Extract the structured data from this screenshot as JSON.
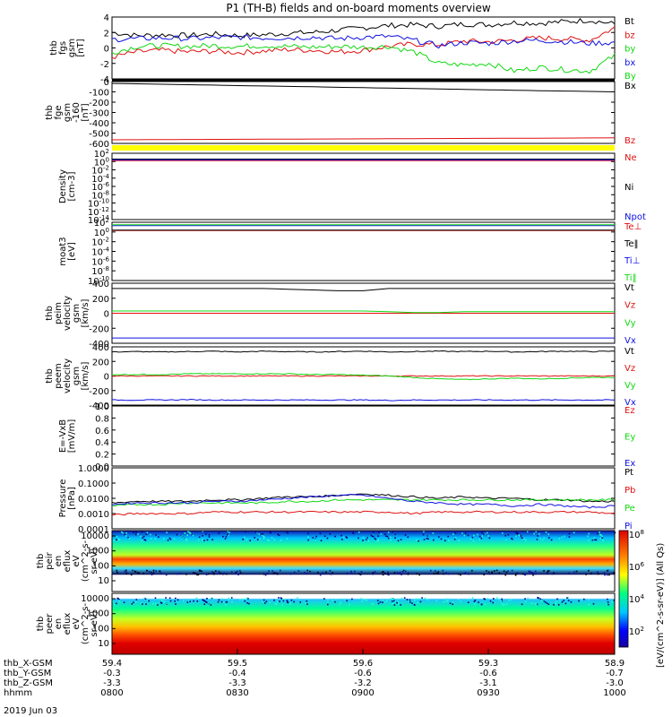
{
  "title": "P1 (TH-B) fields and on-board moments overview",
  "colors": {
    "black": "#000000",
    "red": "#e01010",
    "green": "#10d810",
    "blue": "#1010e0",
    "yellow": "#ffff00"
  },
  "chart_data": [
    {
      "type": "line",
      "id": "fgs",
      "ylabel_lines": [
        "thb",
        "fgs",
        "gsm",
        "[nT]"
      ],
      "ylim": [
        -4,
        4
      ],
      "ticks": [
        "4",
        "2",
        "0",
        "-2",
        "-4"
      ],
      "series": [
        {
          "name": "Bt",
          "color": "black",
          "values": [
            2.0,
            1.6,
            1.7,
            1.6,
            1.8,
            1.6,
            1.7,
            1.9,
            2.0,
            2.3,
            2.6,
            2.9,
            3.0,
            2.8,
            3.1,
            3.0,
            3.3,
            3.2,
            3.4,
            3.6,
            3.1
          ]
        },
        {
          "name": "bz",
          "color": "red",
          "values": [
            -1.2,
            -0.5,
            -0.3,
            -0.5,
            -0.4,
            -0.6,
            -0.4,
            -0.2,
            -0.3,
            -0.5,
            -0.3,
            0.2,
            0.5,
            0.4,
            0.9,
            0.8,
            1.0,
            1.3,
            1.2,
            1.0,
            2.6
          ]
        },
        {
          "name": "by",
          "color": "green",
          "values": [
            -0.6,
            0.2,
            0.3,
            0.2,
            0.3,
            0.2,
            0.3,
            0.2,
            0.1,
            0.2,
            0.1,
            0.2,
            -0.5,
            -2.0,
            -2.2,
            -2.0,
            -3.0,
            -2.5,
            -2.8,
            -3.0,
            -1.0
          ]
        },
        {
          "name": "bx",
          "color": "blue",
          "values": [
            1.1,
            1.2,
            1.3,
            1.2,
            1.3,
            1.4,
            1.3,
            1.3,
            1.4,
            1.2,
            1.4,
            1.5,
            1.0,
            0.3,
            0.7,
            0.6,
            0.9,
            1.0,
            0.8,
            0.6,
            0.7
          ]
        }
      ],
      "extra_legend": [
        {
          "name": "By",
          "color": "green"
        }
      ]
    },
    {
      "type": "line",
      "id": "fge",
      "ylabel_lines": [
        "thb",
        "fge",
        "gsm",
        "-160",
        "[nT]"
      ],
      "ylim": [
        -650,
        0
      ],
      "ticks": [
        "0",
        "-100",
        "-200",
        "-300",
        "-400",
        "-500",
        "-600"
      ],
      "series": [
        {
          "name": "Bx",
          "color": "black",
          "values": [
            -20,
            -24,
            -28,
            -33,
            -37,
            -42,
            -46,
            -51,
            -55,
            -60,
            -64,
            -69,
            -73,
            -78,
            -82,
            -87,
            -91,
            -96,
            -100,
            -104,
            -108
          ]
        },
        {
          "name": "Bz",
          "color": "red",
          "values": [
            -612,
            -611,
            -610,
            -609,
            -608,
            -607,
            -606,
            -605,
            -604,
            -603,
            -602,
            -601,
            -600,
            -599,
            -598,
            -597,
            -596,
            -595,
            -594,
            -593,
            -592
          ]
        }
      ]
    },
    {
      "type": "log",
      "id": "density",
      "ylabel_lines": [
        "Density",
        "[cm-3]"
      ],
      "ylim_exp": [
        -14,
        2
      ],
      "ticks": [
        {
          "b": "10",
          "e": "2"
        },
        {
          "b": "10",
          "e": "0"
        },
        {
          "b": "10",
          "e": "-2"
        },
        {
          "b": "10",
          "e": "-4"
        },
        {
          "b": "10",
          "e": "-6"
        },
        {
          "b": "10",
          "e": "-8"
        },
        {
          "b": "10",
          "e": "-10"
        },
        {
          "b": "10",
          "e": "-12"
        },
        {
          "b": "10",
          "e": "-14"
        }
      ],
      "series": [
        {
          "name": "Ne",
          "color": "red",
          "values": [
            0.2,
            0.2,
            0.2,
            0.2,
            0.2,
            0.2,
            0.2,
            0.2,
            0.2,
            0.2,
            0.2,
            0.2,
            0.2,
            0.2,
            0.2,
            0.2,
            0.2,
            0.2,
            0.2,
            0.2,
            0.2
          ]
        },
        {
          "name": "Ni",
          "color": "black",
          "values": [
            0.6,
            0.6,
            0.6,
            0.6,
            0.6,
            0.6,
            0.6,
            0.6,
            0.6,
            0.6,
            0.6,
            0.6,
            0.6,
            0.6,
            0.6,
            0.6,
            0.6,
            0.6,
            0.6,
            0.6,
            0.6
          ]
        },
        {
          "name": "Npot",
          "color": "blue",
          "values": [
            0.4,
            0.4,
            0.4,
            0.4,
            0.4,
            0.4,
            0.4,
            0.4,
            0.4,
            0.4,
            0.4,
            0.4,
            0.4,
            0.4,
            0.4,
            0.4,
            0.4,
            0.4,
            0.4,
            0.4,
            0.4
          ]
        }
      ]
    },
    {
      "type": "log",
      "id": "moat3",
      "ylabel_lines": [
        "moat3",
        "[eV]"
      ],
      "ylim_exp": [
        -10,
        2
      ],
      "ticks": [
        {
          "b": "10",
          "e": "2"
        },
        {
          "b": "10",
          "e": "0"
        },
        {
          "b": "10",
          "e": "-2"
        },
        {
          "b": "10",
          "e": "-4"
        },
        {
          "b": "10",
          "e": "-6"
        },
        {
          "b": "10",
          "e": "-8"
        },
        {
          "b": "10",
          "e": "-10"
        }
      ],
      "series": [
        {
          "name": "Te⊥",
          "color": "red",
          "values": [
            0.3,
            0.3,
            0.3,
            0.3,
            0.3,
            0.3,
            0.3,
            0.3,
            0.3,
            0.3,
            0.3,
            0.3,
            0.3,
            0.3,
            0.3,
            0.3,
            0.3,
            0.3,
            0.3,
            0.3,
            0.3
          ]
        },
        {
          "name": "Te‖",
          "color": "black",
          "values": [
            0.4,
            0.4,
            0.4,
            0.4,
            0.4,
            0.4,
            0.4,
            0.4,
            0.4,
            0.4,
            0.4,
            0.4,
            0.4,
            0.4,
            0.4,
            0.4,
            0.4,
            0.4,
            0.4,
            0.4,
            0.4
          ]
        },
        {
          "name": "Ti⊥",
          "color": "blue",
          "values": [
            1.3,
            1.3,
            1.3,
            1.3,
            1.3,
            1.3,
            1.3,
            1.3,
            1.3,
            1.3,
            1.3,
            1.3,
            1.3,
            1.3,
            1.3,
            1.3,
            1.3,
            1.3,
            1.3,
            1.3,
            1.3
          ]
        },
        {
          "name": "Ti‖",
          "color": "green",
          "values": [
            1.5,
            1.5,
            1.5,
            1.5,
            1.5,
            1.5,
            1.5,
            1.5,
            1.5,
            1.5,
            1.5,
            1.5,
            1.5,
            1.5,
            1.5,
            1.5,
            1.5,
            1.5,
            1.5,
            1.5,
            1.5
          ]
        }
      ]
    },
    {
      "type": "line",
      "id": "peim",
      "ylabel_lines": [
        "thb",
        "peim",
        "velocity",
        "gsm",
        "[km/s]"
      ],
      "ylim": [
        -400,
        400
      ],
      "ticks": [
        "400",
        "200",
        "0",
        "-200",
        "-400"
      ],
      "series": [
        {
          "name": "Vt",
          "color": "black",
          "values": [
            330,
            330,
            330,
            330,
            330,
            330,
            330,
            320,
            310,
            300,
            300,
            330,
            330,
            330,
            330,
            330,
            330,
            330,
            330,
            330,
            330
          ]
        },
        {
          "name": "Vz",
          "color": "red",
          "values": [
            0,
            0,
            0,
            0,
            0,
            0,
            0,
            0,
            0,
            0,
            0,
            0,
            0,
            0,
            0,
            0,
            0,
            0,
            0,
            0,
            0
          ]
        },
        {
          "name": "Vy",
          "color": "green",
          "values": [
            30,
            30,
            30,
            30,
            30,
            30,
            30,
            30,
            30,
            30,
            30,
            20,
            10,
            10,
            20,
            20,
            20,
            20,
            20,
            20,
            20
          ]
        },
        {
          "name": "Vx",
          "color": "blue",
          "values": [
            -330,
            -330,
            -330,
            -330,
            -330,
            -330,
            -330,
            -330,
            -330,
            -330,
            -330,
            -330,
            -330,
            -330,
            -330,
            -330,
            -330,
            -330,
            -330,
            -330,
            -330
          ]
        }
      ]
    },
    {
      "type": "line",
      "id": "peem",
      "ylabel_lines": [
        "thb",
        "peem",
        "velocity",
        "gsm",
        "[km/s]"
      ],
      "ylim": [
        -400,
        400
      ],
      "ticks": [
        "400",
        "200",
        "0",
        "-200",
        "-400"
      ],
      "series": [
        {
          "name": "Vt",
          "color": "black",
          "values": [
            330,
            335,
            330,
            335,
            340,
            330,
            340,
            335,
            330,
            335,
            340,
            330,
            335,
            340,
            335,
            340,
            330,
            335,
            340,
            335,
            340
          ]
        },
        {
          "name": "Vz",
          "color": "red",
          "values": [
            0,
            0,
            0,
            0,
            0,
            0,
            0,
            0,
            0,
            0,
            0,
            0,
            0,
            0,
            0,
            0,
            0,
            0,
            0,
            0,
            0
          ]
        },
        {
          "name": "Vy",
          "color": "green",
          "values": [
            20,
            20,
            20,
            30,
            30,
            30,
            30,
            30,
            20,
            20,
            10,
            0,
            -20,
            -40,
            -50,
            -40,
            -30,
            -40,
            -30,
            -20,
            -20
          ]
        },
        {
          "name": "Vx",
          "color": "blue",
          "values": [
            -330,
            -330,
            -330,
            -325,
            -330,
            -330,
            -330,
            -330,
            -330,
            -330,
            -330,
            -335,
            -330,
            -330,
            -330,
            -330,
            -330,
            -330,
            -330,
            -330,
            -330
          ]
        }
      ]
    },
    {
      "type": "line",
      "id": "efield",
      "ylabel_lines": [
        "E=-VxB",
        "[mV/m]"
      ],
      "ylim": [
        0,
        1
      ],
      "ticks": [
        "1.0",
        "0.8",
        "0.6",
        "0.4",
        "0.2",
        "0.0"
      ],
      "series": [
        {
          "name": "Ez",
          "color": "red",
          "values": []
        },
        {
          "name": "Ey",
          "color": "green",
          "values": []
        },
        {
          "name": "Ex",
          "color": "blue",
          "values": []
        }
      ]
    },
    {
      "type": "logp",
      "id": "pressure",
      "ylabel_lines": [
        "Pressure",
        "[nPa]"
      ],
      "ylim_exp": [
        -4,
        0
      ],
      "ticks": [
        "1.0000",
        "0.1000",
        "0.0100",
        "0.0010",
        "0.0001"
      ],
      "series": [
        {
          "name": "Pt",
          "color": "black",
          "values": [
            -2.3,
            -2.2,
            -2.2,
            -2.2,
            -2.1,
            -2.1,
            -2.0,
            -1.9,
            -1.9,
            -1.8,
            -1.7,
            -1.8,
            -1.9,
            -2.0,
            -1.9,
            -2.0,
            -2.0,
            -2.1,
            -2.1,
            -2.2,
            -2.2
          ]
        },
        {
          "name": "Pb",
          "color": "red",
          "values": [
            -3.1,
            -3.0,
            -3.0,
            -3.0,
            -2.9,
            -2.9,
            -2.9,
            -2.9,
            -2.9,
            -2.9,
            -2.9,
            -2.9,
            -3.0,
            -2.9,
            -2.9,
            -2.9,
            -2.9,
            -2.9,
            -2.9,
            -2.9,
            -3.0
          ]
        },
        {
          "name": "Pe",
          "color": "green",
          "values": [
            -2.5,
            -2.4,
            -2.4,
            -2.3,
            -2.3,
            -2.3,
            -2.3,
            -2.2,
            -2.2,
            -2.1,
            -2.1,
            -2.1,
            -2.1,
            -2.1,
            -2.1,
            -2.1,
            -2.1,
            -2.1,
            -2.1,
            -2.1,
            -2.1
          ]
        },
        {
          "name": "Pi",
          "color": "blue",
          "values": [
            -2.4,
            -2.3,
            -2.3,
            -2.3,
            -2.2,
            -2.2,
            -2.1,
            -2.0,
            -1.9,
            -1.8,
            -1.8,
            -2.0,
            -2.2,
            -2.3,
            -2.4,
            -2.4,
            -2.5,
            -2.4,
            -2.5,
            -2.6,
            -2.5
          ]
        }
      ]
    },
    {
      "type": "heatmap",
      "id": "peir",
      "ylabel_lines": [
        "thb",
        "peir",
        "en",
        "eflux",
        "eV",
        "(cm^2-s-",
        "sr-eV)"
      ],
      "ticks": [
        "10000",
        "1000",
        "100",
        "10"
      ]
    },
    {
      "type": "heatmap",
      "id": "peer",
      "ylabel_lines": [
        "thb",
        "peer",
        "en",
        "eflux",
        "eV",
        "(cm^2-s-",
        "sr-eV)"
      ],
      "ticks": [
        "10000",
        "1000",
        "100",
        "10"
      ]
    }
  ],
  "colorbar": {
    "label": "[eV/(cm^2-s-sr-eV)] (All Qs)",
    "ticks": [
      {
        "b": "10",
        "e": "8"
      },
      {
        "b": "10",
        "e": "6"
      },
      {
        "b": "10",
        "e": "4"
      },
      {
        "b": "10",
        "e": "2"
      }
    ]
  },
  "xaxis": {
    "rows": [
      {
        "label": "thb_X-GSM",
        "values": [
          "59.4",
          "59.5",
          "59.6",
          "59.3",
          "58.9"
        ]
      },
      {
        "label": "thb_Y-GSM",
        "values": [
          "-0.3",
          "-0.4",
          "-0.6",
          "-0.6",
          "-0.7"
        ]
      },
      {
        "label": "thb_Z-GSM",
        "values": [
          "-3.3",
          "-3.3",
          "-3.2",
          "-3.1",
          "-3.0"
        ]
      },
      {
        "label": "hhmm",
        "values": [
          "0800",
          "0830",
          "0900",
          "0930",
          "1000"
        ]
      }
    ],
    "date": "2019 Jun 03"
  }
}
